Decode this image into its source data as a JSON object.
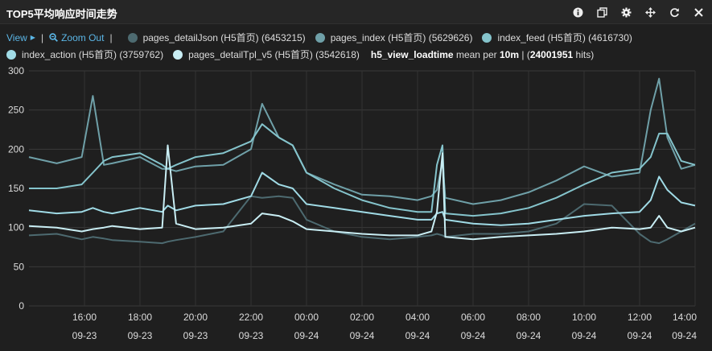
{
  "panel": {
    "title": "TOP5平均响应时间走势",
    "tools": [
      {
        "name": "info-icon"
      },
      {
        "name": "duplicate-icon"
      },
      {
        "name": "gear-icon"
      },
      {
        "name": "move-icon"
      },
      {
        "name": "refresh-icon"
      },
      {
        "name": "close-icon"
      }
    ]
  },
  "controls": {
    "view_label": "View",
    "zoom_out_label": "Zoom Out"
  },
  "stats": {
    "metric": "h5_view_loadtime",
    "mean_per": "mean per",
    "interval": "10m",
    "hits": "24001951",
    "hits_suffix": "hits"
  },
  "chart_data": {
    "type": "line",
    "ylim": [
      0,
      300
    ],
    "yticks": [
      0,
      50,
      100,
      150,
      200,
      250,
      300
    ],
    "grid": true,
    "x_range": [
      "2015-09-23T14:00",
      "2015-09-24T14:00"
    ],
    "xticks": [
      {
        "time": "16:00",
        "date": "09-23"
      },
      {
        "time": "18:00",
        "date": "09-23"
      },
      {
        "time": "20:00",
        "date": "09-23"
      },
      {
        "time": "22:00",
        "date": "09-23"
      },
      {
        "time": "00:00",
        "date": "09-24"
      },
      {
        "time": "02:00",
        "date": "09-24"
      },
      {
        "time": "04:00",
        "date": "09-24"
      },
      {
        "time": "06:00",
        "date": "09-24"
      },
      {
        "time": "08:00",
        "date": "09-24"
      },
      {
        "time": "10:00",
        "date": "09-24"
      },
      {
        "time": "12:00",
        "date": "09-24"
      },
      {
        "time": "14:00",
        "date": "09-24"
      }
    ],
    "x_hours": [
      14,
      15,
      15.9,
      16.3,
      16.7,
      17,
      18,
      18.8,
      19,
      19.3,
      20,
      21,
      22,
      22.4,
      23,
      23.5,
      24,
      25,
      26,
      27,
      28,
      28.5,
      28.7,
      28.9,
      29,
      30,
      31,
      32,
      33,
      34,
      35,
      36,
      36.4,
      36.7,
      37,
      37.5,
      38
    ],
    "series": [
      {
        "name": "pages_detailJson (H5首页) (6453215)",
        "color": "#4d6a70",
        "values": [
          90,
          92,
          85,
          88,
          86,
          84,
          82,
          80,
          82,
          84,
          88,
          95,
          140,
          138,
          140,
          138,
          110,
          95,
          88,
          85,
          88,
          90,
          92,
          90,
          88,
          92,
          92,
          95,
          105,
          130,
          128,
          92,
          82,
          80,
          85,
          95,
          105
        ]
      },
      {
        "name": "pages_index (H5首页) (5629626)",
        "color": "#6fa0a8",
        "values": [
          190,
          182,
          190,
          268,
          180,
          182,
          190,
          175,
          175,
          172,
          178,
          180,
          200,
          258,
          215,
          205,
          170,
          155,
          142,
          140,
          135,
          140,
          148,
          185,
          138,
          130,
          135,
          145,
          160,
          178,
          165,
          170,
          250,
          290,
          215,
          175,
          180
        ]
      },
      {
        "name": "index_feed (H5首页) (4616730)",
        "color": "#85c4cc",
        "values": [
          150,
          150,
          155,
          170,
          185,
          190,
          195,
          180,
          175,
          180,
          190,
          195,
          210,
          232,
          215,
          205,
          170,
          150,
          135,
          125,
          120,
          120,
          180,
          205,
          118,
          115,
          118,
          125,
          138,
          155,
          170,
          175,
          190,
          220,
          220,
          185,
          180
        ]
      },
      {
        "name": "index_action (H5首页) (3759762)",
        "color": "#a0dbe6",
        "values": [
          122,
          118,
          120,
          125,
          120,
          118,
          125,
          120,
          128,
          122,
          128,
          130,
          140,
          170,
          155,
          150,
          130,
          125,
          120,
          115,
          110,
          110,
          118,
          120,
          110,
          105,
          103,
          105,
          110,
          115,
          118,
          120,
          135,
          165,
          148,
          132,
          128
        ]
      },
      {
        "name": "pages_detailTpl_v5 (H5首页) (3542618)",
        "color": "#c9eef4",
        "values": [
          102,
          100,
          95,
          98,
          100,
          102,
          98,
          100,
          205,
          105,
          98,
          100,
          105,
          118,
          115,
          108,
          98,
          95,
          92,
          90,
          90,
          95,
          120,
          195,
          88,
          85,
          88,
          90,
          92,
          95,
          100,
          98,
          100,
          115,
          100,
          95,
          100
        ]
      }
    ]
  }
}
